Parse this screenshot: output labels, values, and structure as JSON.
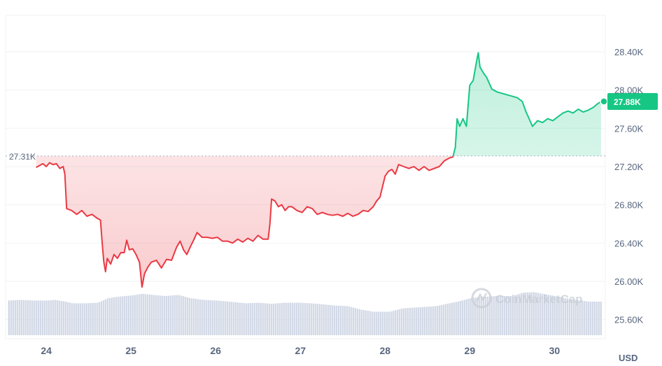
{
  "chart_data": {
    "type": "line",
    "currency": "USD",
    "reference_price": 27310,
    "reference_label": "27.31K",
    "current_price": 27880,
    "current_label": "27.88K",
    "y_ticks": [
      {
        "value": 25600,
        "label": "25.60K"
      },
      {
        "value": 26000,
        "label": "26.00K"
      },
      {
        "value": 26400,
        "label": "26.40K"
      },
      {
        "value": 26800,
        "label": "26.80K"
      },
      {
        "value": 27200,
        "label": "27.20K"
      },
      {
        "value": 27600,
        "label": "27.60K"
      },
      {
        "value": 28000,
        "label": "28.00K"
      },
      {
        "value": 28400,
        "label": "28.40K"
      }
    ],
    "x_ticks": [
      {
        "day": 24,
        "label": "24"
      },
      {
        "day": 25,
        "label": "25"
      },
      {
        "day": 26,
        "label": "26"
      },
      {
        "day": 27,
        "label": "27"
      },
      {
        "day": 28,
        "label": "28"
      },
      {
        "day": 29,
        "label": "29"
      },
      {
        "day": 30,
        "label": "30"
      }
    ],
    "x_range": [
      23.52,
      30.6
    ],
    "y_range": [
      25400,
      28780
    ],
    "price_series": [
      [
        23.88,
        27190
      ],
      [
        23.92,
        27210
      ],
      [
        23.96,
        27230
      ],
      [
        24.0,
        27200
      ],
      [
        24.04,
        27240
      ],
      [
        24.08,
        27220
      ],
      [
        24.12,
        27230
      ],
      [
        24.16,
        27180
      ],
      [
        24.2,
        27200
      ],
      [
        24.22,
        27120
      ],
      [
        24.24,
        26760
      ],
      [
        24.3,
        26740
      ],
      [
        24.36,
        26700
      ],
      [
        24.42,
        26740
      ],
      [
        24.48,
        26680
      ],
      [
        24.54,
        26700
      ],
      [
        24.6,
        26660
      ],
      [
        24.64,
        26640
      ],
      [
        24.66,
        26400
      ],
      [
        24.68,
        26200
      ],
      [
        24.7,
        26100
      ],
      [
        24.72,
        26240
      ],
      [
        24.76,
        26180
      ],
      [
        24.8,
        26280
      ],
      [
        24.84,
        26240
      ],
      [
        24.88,
        26300
      ],
      [
        24.92,
        26300
      ],
      [
        24.95,
        26430
      ],
      [
        24.98,
        26330
      ],
      [
        25.02,
        26340
      ],
      [
        25.06,
        26280
      ],
      [
        25.1,
        26200
      ],
      [
        25.13,
        25940
      ],
      [
        25.16,
        26080
      ],
      [
        25.2,
        26150
      ],
      [
        25.24,
        26200
      ],
      [
        25.3,
        26220
      ],
      [
        25.36,
        26140
      ],
      [
        25.42,
        26230
      ],
      [
        25.48,
        26220
      ],
      [
        25.54,
        26360
      ],
      [
        25.58,
        26420
      ],
      [
        25.62,
        26330
      ],
      [
        25.66,
        26280
      ],
      [
        25.7,
        26360
      ],
      [
        25.74,
        26430
      ],
      [
        25.78,
        26510
      ],
      [
        25.84,
        26460
      ],
      [
        25.9,
        26460
      ],
      [
        25.96,
        26450
      ],
      [
        26.02,
        26460
      ],
      [
        26.08,
        26420
      ],
      [
        26.14,
        26420
      ],
      [
        26.2,
        26400
      ],
      [
        26.26,
        26440
      ],
      [
        26.32,
        26410
      ],
      [
        26.38,
        26450
      ],
      [
        26.44,
        26420
      ],
      [
        26.5,
        26480
      ],
      [
        26.56,
        26440
      ],
      [
        26.62,
        26440
      ],
      [
        26.64,
        26600
      ],
      [
        26.66,
        26860
      ],
      [
        26.7,
        26840
      ],
      [
        26.74,
        26780
      ],
      [
        26.78,
        26800
      ],
      [
        26.82,
        26740
      ],
      [
        26.86,
        26780
      ],
      [
        26.9,
        26780
      ],
      [
        26.96,
        26740
      ],
      [
        27.02,
        26720
      ],
      [
        27.08,
        26780
      ],
      [
        27.14,
        26760
      ],
      [
        27.2,
        26700
      ],
      [
        27.26,
        26720
      ],
      [
        27.32,
        26700
      ],
      [
        27.38,
        26690
      ],
      [
        27.44,
        26700
      ],
      [
        27.5,
        26680
      ],
      [
        27.56,
        26710
      ],
      [
        27.62,
        26680
      ],
      [
        27.68,
        26700
      ],
      [
        27.74,
        26740
      ],
      [
        27.8,
        26730
      ],
      [
        27.86,
        26780
      ],
      [
        27.9,
        26840
      ],
      [
        27.94,
        26880
      ],
      [
        28.0,
        27100
      ],
      [
        28.04,
        27150
      ],
      [
        28.08,
        27170
      ],
      [
        28.12,
        27120
      ],
      [
        28.16,
        27220
      ],
      [
        28.22,
        27200
      ],
      [
        28.28,
        27180
      ],
      [
        28.34,
        27200
      ],
      [
        28.4,
        27160
      ],
      [
        28.46,
        27200
      ],
      [
        28.52,
        27160
      ],
      [
        28.58,
        27180
      ],
      [
        28.64,
        27200
      ],
      [
        28.7,
        27260
      ],
      [
        28.76,
        27290
      ],
      [
        28.8,
        27300
      ],
      [
        28.83,
        27400
      ],
      [
        28.85,
        27700
      ],
      [
        28.88,
        27620
      ],
      [
        28.92,
        27700
      ],
      [
        28.96,
        27620
      ],
      [
        29.0,
        28050
      ],
      [
        29.04,
        28100
      ],
      [
        29.07,
        28250
      ],
      [
        29.1,
        28390
      ],
      [
        29.12,
        28240
      ],
      [
        29.16,
        28180
      ],
      [
        29.2,
        28130
      ],
      [
        29.26,
        28010
      ],
      [
        29.32,
        27980
      ],
      [
        29.4,
        27960
      ],
      [
        29.48,
        27940
      ],
      [
        29.56,
        27920
      ],
      [
        29.62,
        27880
      ],
      [
        29.66,
        27780
      ],
      [
        29.7,
        27700
      ],
      [
        29.74,
        27620
      ],
      [
        29.8,
        27680
      ],
      [
        29.86,
        27660
      ],
      [
        29.92,
        27700
      ],
      [
        29.98,
        27680
      ],
      [
        30.04,
        27720
      ],
      [
        30.1,
        27760
      ],
      [
        30.16,
        27780
      ],
      [
        30.22,
        27760
      ],
      [
        30.28,
        27800
      ],
      [
        30.34,
        27770
      ],
      [
        30.4,
        27790
      ],
      [
        30.46,
        27820
      ],
      [
        30.5,
        27850
      ],
      [
        30.55,
        27880
      ]
    ],
    "volume_series": [
      [
        23.55,
        0.62
      ],
      [
        23.7,
        0.63
      ],
      [
        23.85,
        0.62
      ],
      [
        24.0,
        0.62
      ],
      [
        24.1,
        0.63
      ],
      [
        24.22,
        0.6
      ],
      [
        24.3,
        0.57
      ],
      [
        24.45,
        0.57
      ],
      [
        24.6,
        0.58
      ],
      [
        24.72,
        0.66
      ],
      [
        24.85,
        0.69
      ],
      [
        25.0,
        0.71
      ],
      [
        25.13,
        0.74
      ],
      [
        25.25,
        0.72
      ],
      [
        25.4,
        0.7
      ],
      [
        25.55,
        0.72
      ],
      [
        25.7,
        0.66
      ],
      [
        25.85,
        0.63
      ],
      [
        26.0,
        0.62
      ],
      [
        26.15,
        0.6
      ],
      [
        26.35,
        0.57
      ],
      [
        26.5,
        0.58
      ],
      [
        26.65,
        0.56
      ],
      [
        26.8,
        0.58
      ],
      [
        27.0,
        0.58
      ],
      [
        27.2,
        0.56
      ],
      [
        27.4,
        0.53
      ],
      [
        27.55,
        0.52
      ],
      [
        27.7,
        0.46
      ],
      [
        27.85,
        0.42
      ],
      [
        28.05,
        0.42
      ],
      [
        28.2,
        0.48
      ],
      [
        28.4,
        0.5
      ],
      [
        28.6,
        0.52
      ],
      [
        28.75,
        0.57
      ],
      [
        28.85,
        0.6
      ],
      [
        29.0,
        0.66
      ],
      [
        29.1,
        0.68
      ],
      [
        29.3,
        0.7
      ],
      [
        29.5,
        0.7
      ],
      [
        29.62,
        0.76
      ],
      [
        29.75,
        0.77
      ],
      [
        29.85,
        0.74
      ],
      [
        30.0,
        0.7
      ],
      [
        30.2,
        0.64
      ],
      [
        30.4,
        0.6
      ],
      [
        30.55,
        0.6
      ]
    ],
    "colors": {
      "up": "#16c784",
      "down": "#ea3943",
      "volume": "#cfd6e4",
      "grid": "#eff2f5",
      "reference": "#a6b0c3",
      "watermark": "#c8cdd6"
    }
  }
}
